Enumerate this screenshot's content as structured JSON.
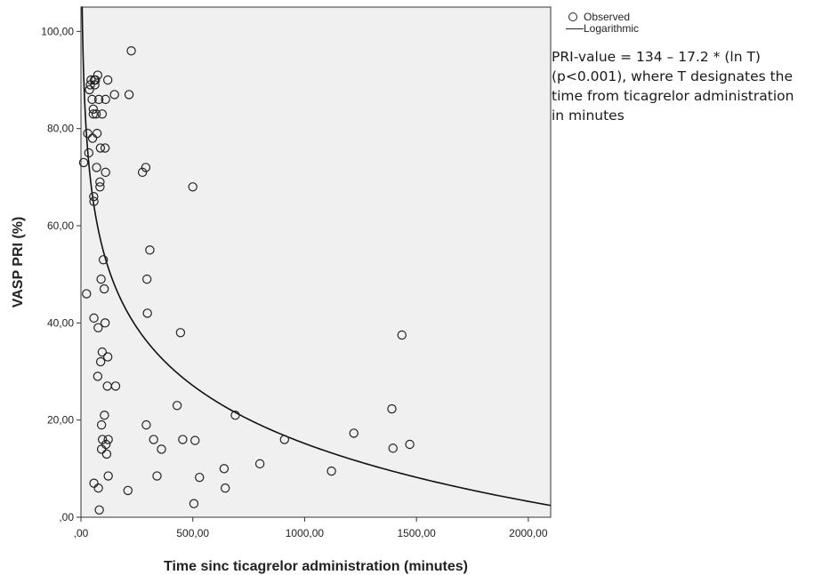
{
  "chart_data": {
    "type": "scatter",
    "title": "",
    "xlabel": "Time sinc ticagrelor administration (minutes)",
    "ylabel": "VASP PRI (%)",
    "xlim": [
      0,
      2100
    ],
    "ylim": [
      0,
      105
    ],
    "x_ticks": [
      0,
      500,
      1000,
      1500,
      2000
    ],
    "x_tick_labels": [
      ",00",
      "500,00",
      "1000,00",
      "1500,00",
      "2000,00"
    ],
    "y_ticks": [
      0,
      20,
      40,
      60,
      80,
      100
    ],
    "y_tick_labels": [
      ",00",
      "20,00",
      "40,00",
      "60,00",
      "80,00",
      "100,00"
    ],
    "grid": false,
    "legend_position": "top-right outside",
    "series": [
      {
        "name": "Observed",
        "kind": "points",
        "points": [
          [
            12,
            73
          ],
          [
            25,
            46
          ],
          [
            30,
            79
          ],
          [
            35,
            75
          ],
          [
            38,
            88
          ],
          [
            42,
            89
          ],
          [
            45,
            90
          ],
          [
            50,
            86
          ],
          [
            52,
            78
          ],
          [
            55,
            84
          ],
          [
            55,
            83
          ],
          [
            57,
            66
          ],
          [
            58,
            65
          ],
          [
            58,
            41
          ],
          [
            58,
            7
          ],
          [
            60,
            90
          ],
          [
            62,
            89
          ],
          [
            65,
            90
          ],
          [
            68,
            83
          ],
          [
            70,
            72
          ],
          [
            72,
            79
          ],
          [
            75,
            91
          ],
          [
            75,
            29
          ],
          [
            77,
            39
          ],
          [
            78,
            6
          ],
          [
            80,
            86
          ],
          [
            82,
            1.5
          ],
          [
            85,
            69
          ],
          [
            85,
            68
          ],
          [
            87,
            76
          ],
          [
            88,
            32
          ],
          [
            90,
            49
          ],
          [
            92,
            19
          ],
          [
            92,
            14
          ],
          [
            95,
            83
          ],
          [
            95,
            34
          ],
          [
            96,
            16
          ],
          [
            100,
            53
          ],
          [
            104,
            47
          ],
          [
            105,
            21
          ],
          [
            108,
            76
          ],
          [
            108,
            40
          ],
          [
            110,
            86
          ],
          [
            110,
            71
          ],
          [
            112,
            15
          ],
          [
            115,
            13
          ],
          [
            118,
            27
          ],
          [
            120,
            90
          ],
          [
            120,
            33
          ],
          [
            122,
            16
          ],
          [
            122,
            8.5
          ],
          [
            150,
            87
          ],
          [
            155,
            27
          ],
          [
            210,
            5.5
          ],
          [
            215,
            87
          ],
          [
            225,
            96
          ],
          [
            275,
            71
          ],
          [
            290,
            72
          ],
          [
            292,
            19
          ],
          [
            295,
            49
          ],
          [
            297,
            42
          ],
          [
            308,
            55
          ],
          [
            325,
            16
          ],
          [
            340,
            8.5
          ],
          [
            360,
            14
          ],
          [
            430,
            23
          ],
          [
            445,
            38
          ],
          [
            455,
            16
          ],
          [
            500,
            68
          ],
          [
            505,
            2.8
          ],
          [
            510,
            15.8
          ],
          [
            530,
            8.2
          ],
          [
            640,
            10
          ],
          [
            645,
            6
          ],
          [
            690,
            21
          ],
          [
            800,
            11
          ],
          [
            910,
            16
          ],
          [
            1120,
            9.5
          ],
          [
            1220,
            17.3
          ],
          [
            1390,
            22.3
          ],
          [
            1395,
            14.2
          ],
          [
            1435,
            37.5
          ],
          [
            1470,
            15
          ]
        ]
      },
      {
        "name": "Logarithmic",
        "kind": "fit_curve",
        "equation": {
          "a": 134,
          "b": -17.2
        },
        "x_range": [
          2.8,
          2100
        ]
      }
    ],
    "annotation": [
      "PRI-value = 134 – 17.2 * (ln T)",
      "(p<0.001), where T designates the",
      "time from ticagrelor administration",
      "in minutes"
    ]
  }
}
